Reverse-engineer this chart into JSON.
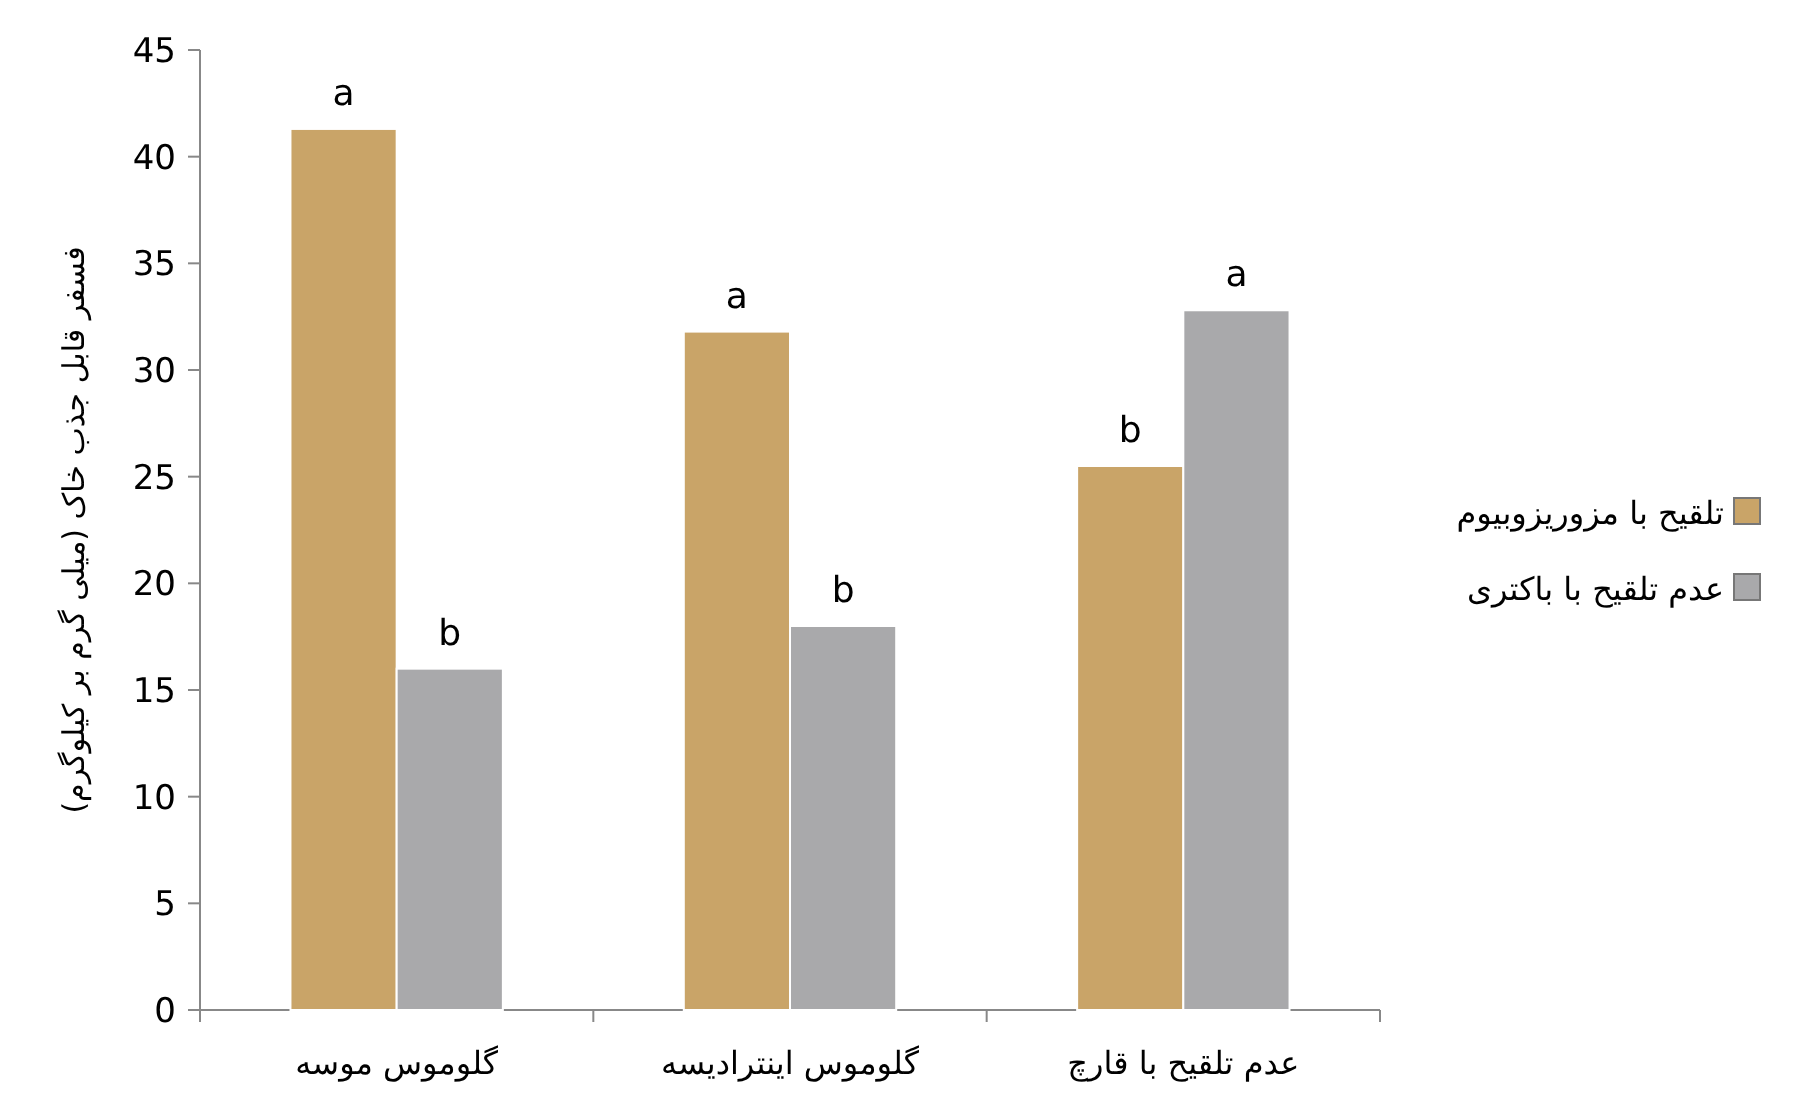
{
  "chart_data": {
    "type": "bar",
    "ylabel": "فسفر قابل جذب خاک (میلی گرم بر کیلوگرم)",
    "categories": [
      "گلوموس موسه",
      "گلوموس اینترادیسه",
      "عدم تلقیح با قارچ"
    ],
    "series": [
      {
        "name": "تلقیح با مزوریزوبیوم",
        "color": "#c9a468",
        "values": [
          41.3,
          31.8,
          25.5
        ],
        "value_labels": [
          "a",
          "a",
          "b"
        ]
      },
      {
        "name": "عدم تلقیح با باکتری",
        "color": "#a9a9ab",
        "values": [
          16,
          18,
          32.8
        ],
        "value_labels": [
          "b",
          "b",
          "a"
        ]
      }
    ],
    "ylim": [
      0,
      45
    ],
    "yticks": [
      0,
      5,
      10,
      15,
      20,
      25,
      30,
      35,
      40,
      45
    ],
    "grid": false,
    "legend": "right"
  }
}
